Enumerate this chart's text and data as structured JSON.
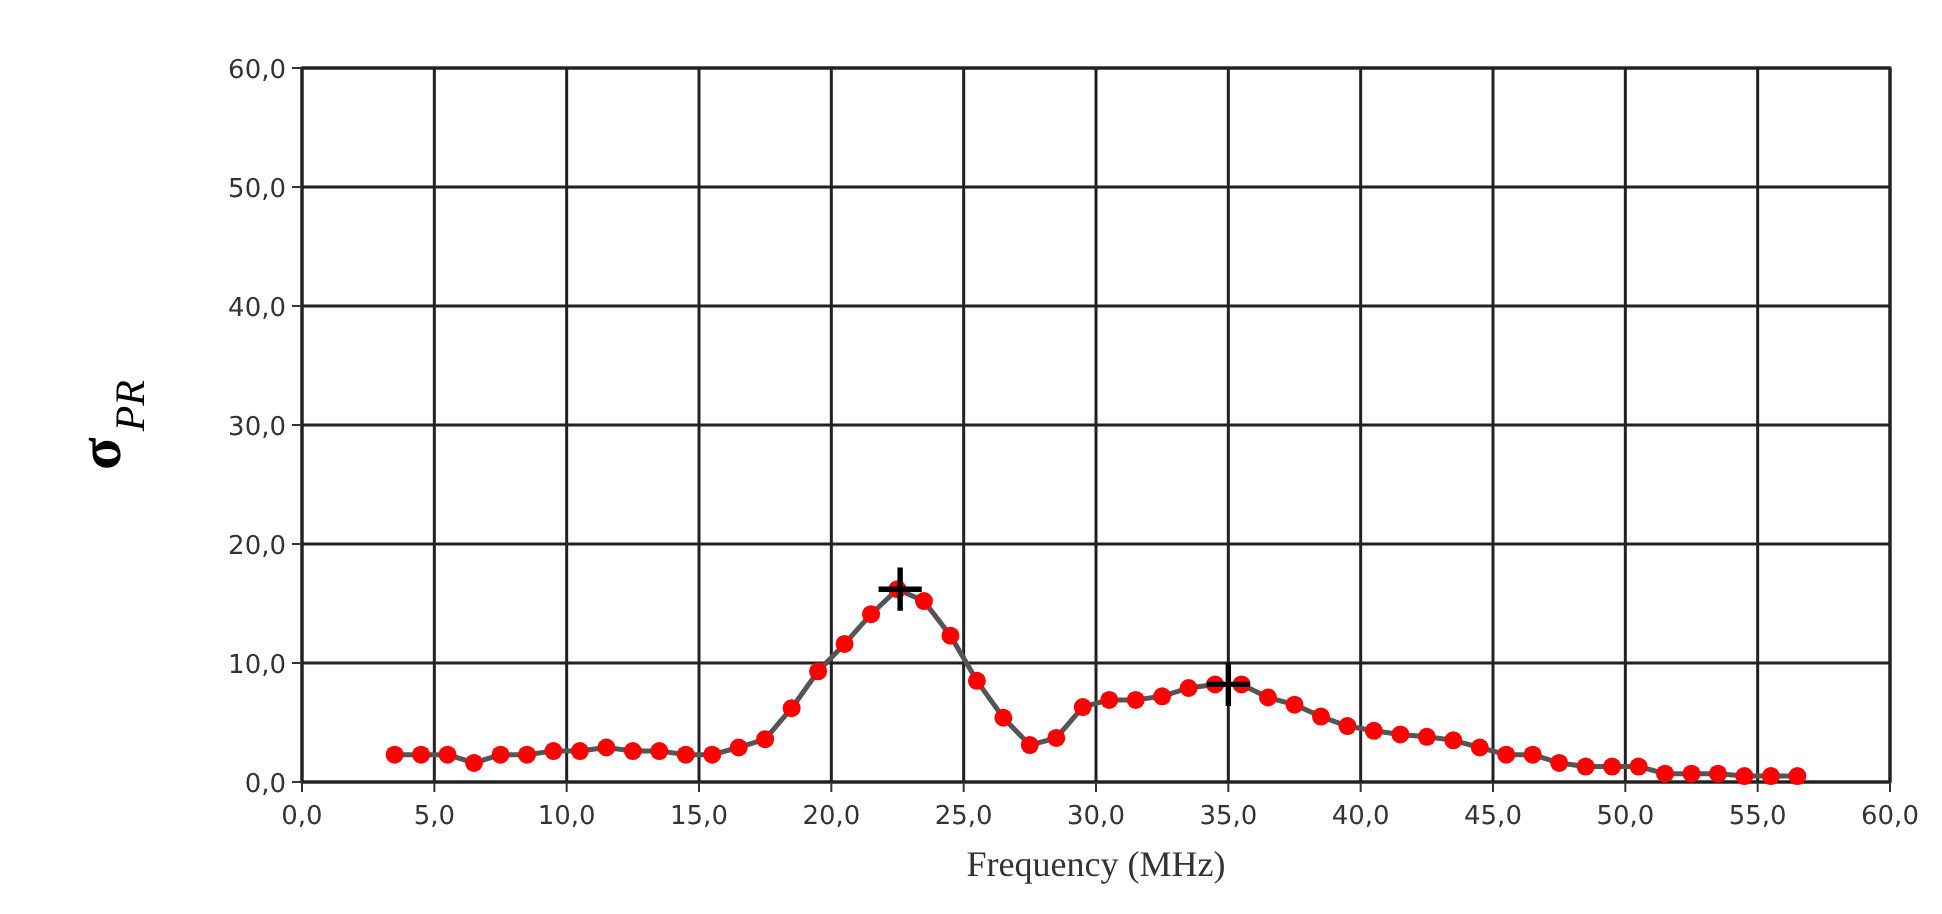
{
  "chart_data": {
    "type": "line",
    "xlabel": "Frequency (MHz)",
    "ylabel": "σ$_{PR}$",
    "xlim": [
      0,
      60
    ],
    "ylim": [
      0,
      60
    ],
    "xticks": [
      {
        "value": 0,
        "label": "0,0"
      },
      {
        "value": 5,
        "label": "5,0"
      },
      {
        "value": 10,
        "label": "10,0"
      },
      {
        "value": 15,
        "label": "15,0"
      },
      {
        "value": 20,
        "label": "20,0"
      },
      {
        "value": 25,
        "label": "25,0"
      },
      {
        "value": 30,
        "label": "30,0"
      },
      {
        "value": 35,
        "label": "35,0"
      },
      {
        "value": 40,
        "label": "40,0"
      },
      {
        "value": 45,
        "label": "45,0"
      },
      {
        "value": 50,
        "label": "50,0"
      },
      {
        "value": 55,
        "label": "55,0"
      },
      {
        "value": 60,
        "label": "60,0"
      }
    ],
    "yticks": [
      {
        "value": 0,
        "label": "0,0"
      },
      {
        "value": 10,
        "label": "10,0"
      },
      {
        "value": 20,
        "label": "20,0"
      },
      {
        "value": 30,
        "label": "30,0"
      },
      {
        "value": 40,
        "label": "40,0"
      },
      {
        "value": 50,
        "label": "50,0"
      },
      {
        "value": 60,
        "label": "60,0"
      }
    ],
    "grid": true,
    "series": [
      {
        "color": "#ff0000",
        "marker": "circle",
        "x": [
          3.5,
          4.5,
          5.5,
          6.5,
          7.5,
          8.5,
          9.5,
          10.5,
          11.5,
          12.5,
          13.5,
          14.5,
          15.5,
          16.5,
          17.5,
          18.5,
          19.5,
          20.5,
          21.5,
          22.5,
          23.5,
          24.5,
          25.5,
          26.5,
          27.5,
          28.5,
          29.5,
          30.5,
          31.5,
          32.5,
          33.5,
          34.5,
          35.5,
          36.5,
          37.5,
          38.5,
          39.5,
          40.5,
          41.5,
          42.5,
          43.5,
          44.5,
          45.5,
          46.5,
          47.5,
          48.5,
          49.5,
          50.5,
          51.5,
          52.5,
          53.5,
          54.5,
          55.5,
          56.5
        ],
        "values": [
          2.3,
          2.3,
          2.3,
          1.6,
          2.3,
          2.3,
          2.6,
          2.6,
          2.9,
          2.6,
          2.6,
          2.3,
          2.3,
          2.9,
          3.6,
          6.2,
          9.3,
          11.6,
          14.1,
          16.2,
          15.2,
          12.3,
          8.5,
          5.4,
          3.1,
          3.7,
          6.3,
          6.9,
          6.9,
          7.2,
          7.9,
          8.2,
          8.2,
          7.1,
          6.5,
          5.5,
          4.7,
          4.3,
          4.0,
          3.8,
          3.5,
          2.9,
          2.3,
          2.3,
          1.6,
          1.3,
          1.3,
          1.3,
          0.7,
          0.7,
          0.7,
          0.5,
          0.5,
          0.5
        ]
      },
      {
        "type": "scatter",
        "color": "#000000",
        "marker": "cross",
        "x": [
          22.6,
          35
        ],
        "values": [
          16.2,
          8.2
        ]
      }
    ]
  }
}
